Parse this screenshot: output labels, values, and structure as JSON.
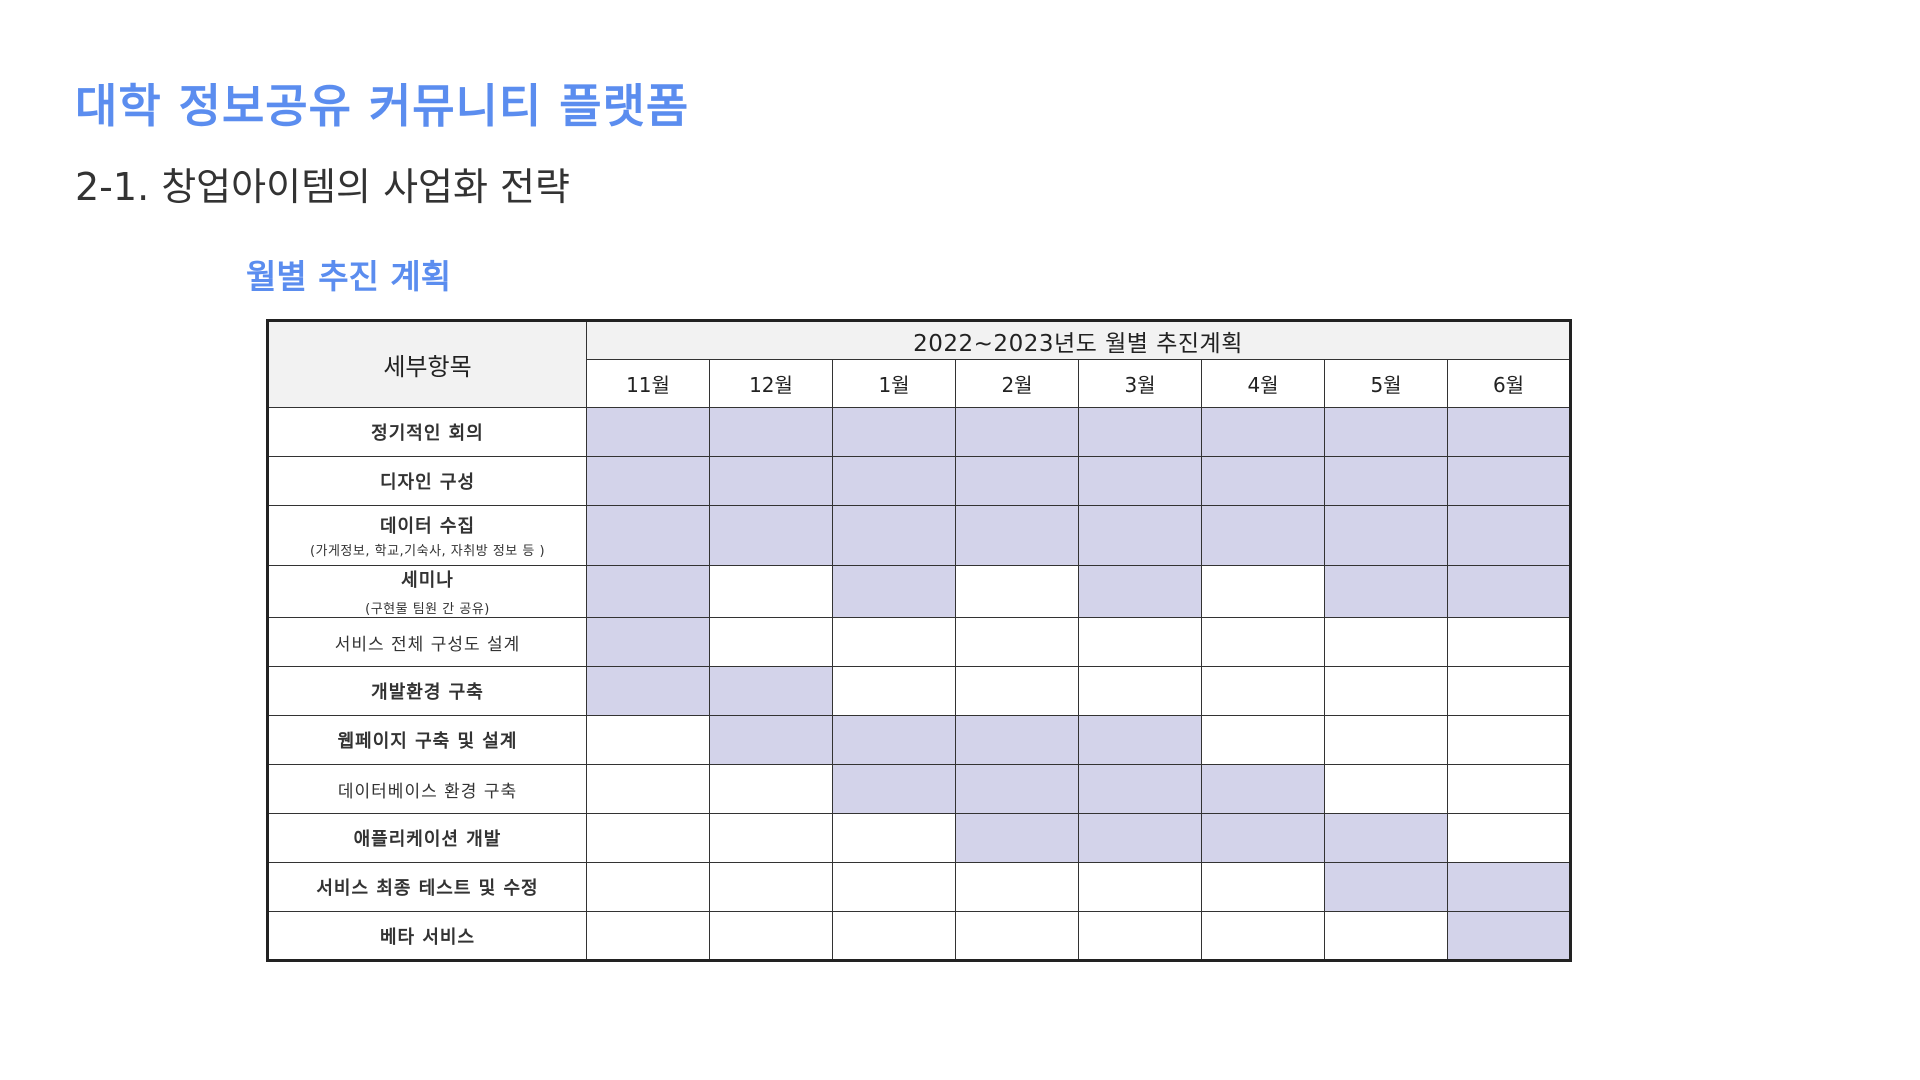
{
  "header": {
    "title": "대학 정보공유 커뮤니티 플랫폼",
    "subtitle": "2-1. 창업아이템의 사업화 전략"
  },
  "section": {
    "heading": "월별 추진 계획"
  },
  "table": {
    "corner_label": "세부항목",
    "period_label": "2022~2023년도 월별 추진계획",
    "months": [
      "11월",
      "12월",
      "1월",
      "2월",
      "3월",
      "4월",
      "5월",
      "6월"
    ],
    "highlight_color": "#d3d3ea",
    "rows": [
      {
        "label": "정기적인 회의",
        "sub": "",
        "active": [
          1,
          1,
          1,
          1,
          1,
          1,
          1,
          1
        ]
      },
      {
        "label": "디자인 구성",
        "sub": "",
        "active": [
          1,
          1,
          1,
          1,
          1,
          1,
          1,
          1
        ]
      },
      {
        "label": "데이터 수집",
        "sub": "(가게정보, 학교,기숙사, 자취방 정보 등 )",
        "active": [
          1,
          1,
          1,
          1,
          1,
          1,
          1,
          1
        ]
      },
      {
        "label": "세미나",
        "sub": "(구현물 팀원 간 공유)",
        "active": [
          1,
          0,
          1,
          0,
          1,
          0,
          1,
          1
        ]
      },
      {
        "label": "서비스 전체 구성도 설계",
        "sub": "",
        "active": [
          1,
          0,
          0,
          0,
          0,
          0,
          0,
          0
        ]
      },
      {
        "label": "개발환경 구축",
        "sub": "",
        "active": [
          1,
          1,
          0,
          0,
          0,
          0,
          0,
          0
        ]
      },
      {
        "label": "웹페이지 구축 및 설계",
        "sub": "",
        "active": [
          0,
          1,
          1,
          1,
          1,
          0,
          0,
          0
        ]
      },
      {
        "label": "데이터베이스 환경 구축",
        "sub": "",
        "active": [
          0,
          0,
          1,
          1,
          1,
          1,
          0,
          0
        ]
      },
      {
        "label": "애플리케이션 개발",
        "sub": "",
        "active": [
          0,
          0,
          0,
          1,
          1,
          1,
          1,
          0
        ]
      },
      {
        "label": "서비스 최종 테스트 및 수정",
        "sub": "",
        "active": [
          0,
          0,
          0,
          0,
          0,
          0,
          1,
          1
        ]
      },
      {
        "label": "베타 서비스",
        "sub": "",
        "active": [
          0,
          0,
          0,
          0,
          0,
          0,
          0,
          1
        ]
      }
    ]
  }
}
